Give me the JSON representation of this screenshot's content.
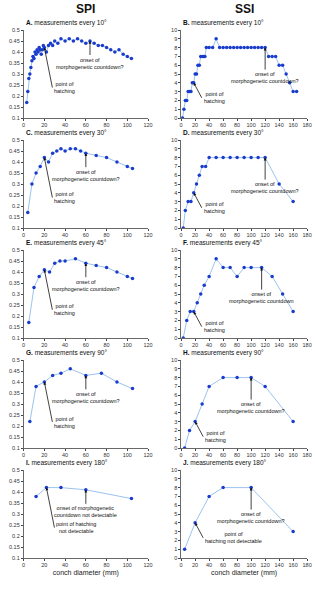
{
  "column_titles": [
    "SPI",
    "SSI"
  ],
  "chart_data": [
    {
      "type": "line",
      "title": "A. measurements every 10°",
      "color": "#1a3ccc",
      "marker": "circle",
      "line_style": "solid",
      "grid": false,
      "x": [
        3,
        4,
        5,
        6,
        7,
        8,
        9,
        10,
        11,
        12,
        13,
        14,
        15,
        16,
        17,
        18,
        19,
        20,
        22,
        24,
        26,
        28,
        30,
        33,
        36,
        40,
        44,
        48,
        52,
        56,
        60,
        64,
        68,
        72,
        76,
        80,
        84,
        88,
        92,
        96,
        100,
        104
      ],
      "values": [
        0.17,
        0.22,
        0.28,
        0.3,
        0.33,
        0.36,
        0.38,
        0.37,
        0.4,
        0.39,
        0.41,
        0.4,
        0.42,
        0.41,
        0.39,
        0.41,
        0.43,
        0.42,
        0.4,
        0.43,
        0.44,
        0.43,
        0.45,
        0.44,
        0.46,
        0.45,
        0.46,
        0.45,
        0.46,
        0.45,
        0.44,
        0.45,
        0.44,
        0.43,
        0.43,
        0.42,
        0.41,
        0.4,
        0.41,
        0.39,
        0.38,
        0.37
      ],
      "xlim": [
        0,
        120
      ],
      "xticks": [
        0,
        20,
        40,
        60,
        80,
        100,
        120
      ],
      "ylim": [
        0.1,
        0.5
      ],
      "yticks": [
        0.1,
        0.15,
        0.2,
        0.25,
        0.3,
        0.35,
        0.4,
        0.45,
        0.5
      ],
      "annotations": [
        {
          "x": 20,
          "y": 0.42,
          "text": "point of\nhatching"
        },
        {
          "x": 64,
          "y": 0.45,
          "text": "onset of\nmorphogenetic countdown?"
        }
      ]
    },
    {
      "type": "line",
      "title": "B. measurements every 10°",
      "color": "#1a3ccc",
      "marker": "circle",
      "line_style": "solid",
      "grid": false,
      "x": [
        2,
        4,
        6,
        8,
        10,
        12,
        14,
        16,
        18,
        20,
        22,
        24,
        26,
        28,
        30,
        32,
        34,
        36,
        40,
        45,
        50,
        55,
        60,
        65,
        70,
        75,
        80,
        85,
        90,
        95,
        100,
        105,
        110,
        115,
        120,
        125,
        130,
        135,
        140,
        145,
        150,
        155,
        160,
        165
      ],
      "values": [
        0,
        1,
        2,
        2,
        3,
        3,
        3,
        4,
        4,
        5,
        5,
        6,
        6,
        7,
        7,
        7,
        7,
        8,
        8,
        8,
        9,
        8,
        8,
        8,
        8,
        8,
        8,
        8,
        8,
        8,
        8,
        8,
        8,
        8,
        8,
        7,
        7,
        7,
        6,
        6,
        5,
        4,
        3,
        3
      ],
      "xlim": [
        0,
        180
      ],
      "xticks": [
        0,
        20,
        40,
        60,
        80,
        100,
        120,
        140,
        160,
        180
      ],
      "ylim": [
        0,
        10
      ],
      "yticks": [
        0,
        1,
        2,
        3,
        4,
        5,
        6,
        7,
        8,
        9,
        10
      ],
      "annotations": [
        {
          "x": 18,
          "y": 4,
          "text": "point of\nhatching"
        },
        {
          "x": 120,
          "y": 8,
          "text": "onset of\nmorphogenetic countdown?"
        }
      ]
    },
    {
      "type": "line",
      "title": "C. measurements every 30°",
      "color": "#1a3ccc",
      "marker": "circle",
      "line_style": "solid",
      "grid": false,
      "x": [
        4,
        8,
        12,
        16,
        20,
        24,
        28,
        32,
        36,
        40,
        45,
        50,
        55,
        60,
        70,
        80,
        90,
        100,
        105
      ],
      "values": [
        0.17,
        0.3,
        0.35,
        0.38,
        0.42,
        0.4,
        0.44,
        0.45,
        0.46,
        0.45,
        0.46,
        0.46,
        0.45,
        0.44,
        0.43,
        0.42,
        0.4,
        0.38,
        0.37
      ],
      "xlim": [
        0,
        120
      ],
      "xticks": [
        0,
        20,
        40,
        60,
        80,
        100,
        120
      ],
      "ylim": [
        0.1,
        0.5
      ],
      "yticks": [
        0.1,
        0.15,
        0.2,
        0.25,
        0.3,
        0.35,
        0.4,
        0.45,
        0.5
      ],
      "annotations": [
        {
          "x": 20,
          "y": 0.42,
          "text": "point of\nhatching"
        },
        {
          "x": 60,
          "y": 0.44,
          "text": "onset of\nmorphogenetic countdown?"
        }
      ]
    },
    {
      "type": "line",
      "title": "D. measurements every 30°",
      "color": "#1a3ccc",
      "marker": "circle",
      "line_style": "solid",
      "grid": false,
      "x": [
        3,
        6,
        10,
        14,
        18,
        22,
        26,
        30,
        35,
        40,
        50,
        60,
        70,
        80,
        90,
        100,
        110,
        120,
        140,
        160
      ],
      "values": [
        0,
        2,
        3,
        3,
        4,
        5,
        6,
        7,
        7,
        8,
        8,
        8,
        8,
        8,
        8,
        8,
        8,
        8,
        5,
        3
      ],
      "xlim": [
        0,
        180
      ],
      "xticks": [
        0,
        20,
        40,
        60,
        80,
        100,
        120,
        140,
        160,
        180
      ],
      "ylim": [
        0,
        10
      ],
      "yticks": [
        0,
        1,
        2,
        3,
        4,
        5,
        6,
        7,
        8,
        9,
        10
      ],
      "annotations": [
        {
          "x": 18,
          "y": 4,
          "text": "point of\nhatching"
        },
        {
          "x": 120,
          "y": 8,
          "text": "onset of\nmorphogenetic countdown?"
        }
      ]
    },
    {
      "type": "line",
      "title": "E. measurements every 45°",
      "color": "#1a3ccc",
      "marker": "circle",
      "line_style": "solid",
      "grid": false,
      "x": [
        5,
        10,
        15,
        20,
        25,
        30,
        35,
        40,
        50,
        60,
        70,
        80,
        90,
        100,
        105
      ],
      "values": [
        0.17,
        0.33,
        0.38,
        0.41,
        0.4,
        0.44,
        0.45,
        0.45,
        0.46,
        0.44,
        0.43,
        0.42,
        0.4,
        0.38,
        0.37
      ],
      "xlim": [
        0,
        120
      ],
      "xticks": [
        0,
        20,
        40,
        60,
        80,
        100,
        120
      ],
      "ylim": [
        0.1,
        0.5
      ],
      "yticks": [
        0.1,
        0.15,
        0.2,
        0.25,
        0.3,
        0.35,
        0.4,
        0.45,
        0.5
      ],
      "annotations": [
        {
          "x": 20,
          "y": 0.41,
          "text": "point of\nhatching"
        },
        {
          "x": 60,
          "y": 0.44,
          "text": "onset of\nmorphogenetic countdown?"
        }
      ]
    },
    {
      "type": "line",
      "title": "F. measurements every 45°",
      "color": "#1a3ccc",
      "marker": "circle",
      "line_style": "solid",
      "grid": false,
      "x": [
        3,
        8,
        13,
        18,
        23,
        28,
        33,
        40,
        50,
        60,
        70,
        80,
        90,
        100,
        115,
        130,
        145,
        160
      ],
      "values": [
        0,
        2,
        3,
        3,
        4,
        5,
        6,
        7,
        9,
        8,
        8,
        7,
        8,
        8,
        8,
        7,
        5,
        3
      ],
      "xlim": [
        0,
        180
      ],
      "xticks": [
        0,
        20,
        40,
        60,
        80,
        100,
        120,
        140,
        160,
        180
      ],
      "ylim": [
        0,
        10
      ],
      "yticks": [
        0,
        1,
        2,
        3,
        4,
        5,
        6,
        7,
        8,
        9,
        10
      ],
      "annotations": [
        {
          "x": 18,
          "y": 3,
          "text": "point of\nhatching"
        },
        {
          "x": 115,
          "y": 8,
          "text": "onset of\nmorphogenetic countdown"
        }
      ]
    },
    {
      "type": "line",
      "title": "G. measurements every 90°",
      "color": "#1a3ccc",
      "marker": "circle",
      "line_style": "solid",
      "grid": false,
      "x": [
        6,
        12,
        20,
        28,
        36,
        45,
        60,
        75,
        90,
        105
      ],
      "values": [
        0.22,
        0.38,
        0.4,
        0.43,
        0.44,
        0.46,
        0.43,
        0.44,
        0.4,
        0.37
      ],
      "xlim": [
        0,
        120
      ],
      "xticks": [
        0,
        20,
        40,
        60,
        80,
        100,
        120
      ],
      "ylim": [
        0.1,
        0.5
      ],
      "yticks": [
        0.1,
        0.15,
        0.2,
        0.25,
        0.3,
        0.35,
        0.4,
        0.45,
        0.5
      ],
      "annotations": [
        {
          "x": 20,
          "y": 0.4,
          "text": "point of\nhatching"
        },
        {
          "x": 60,
          "y": 0.43,
          "text": "onset of\nmorphogenetic countdown?"
        }
      ]
    },
    {
      "type": "line",
      "title": "H. measurements every 90°",
      "color": "#1a3ccc",
      "marker": "circle",
      "line_style": "solid",
      "grid": false,
      "x": [
        5,
        12,
        20,
        30,
        40,
        60,
        80,
        100,
        120,
        160
      ],
      "values": [
        0,
        2,
        3,
        5,
        7,
        8,
        8,
        8,
        7,
        3
      ],
      "xlim": [
        0,
        180
      ],
      "xticks": [
        0,
        20,
        40,
        60,
        80,
        100,
        120,
        140,
        160,
        180
      ],
      "ylim": [
        0,
        10
      ],
      "yticks": [
        0,
        1,
        2,
        3,
        4,
        5,
        6,
        7,
        8,
        9,
        10
      ],
      "annotations": [
        {
          "x": 20,
          "y": 3,
          "text": "point of\nhatching"
        },
        {
          "x": 100,
          "y": 8,
          "text": "onset of\nmorphogenetic countdown?"
        }
      ]
    },
    {
      "type": "line",
      "title": "I. measurements every 180°",
      "color": "#1a3ccc",
      "marker": "circle",
      "line_style": "solid",
      "grid": false,
      "x": [
        12,
        22,
        36,
        60,
        104
      ],
      "values": [
        0.38,
        0.42,
        0.42,
        0.41,
        0.37
      ],
      "xlim": [
        0,
        120
      ],
      "xticks": [
        0,
        20,
        40,
        60,
        80,
        100,
        120
      ],
      "ylim": [
        0.1,
        0.5
      ],
      "yticks": [
        0.1,
        0.15,
        0.2,
        0.25,
        0.3,
        0.35,
        0.4,
        0.45,
        0.5
      ],
      "xlabel": "conch diameter (mm)",
      "annotations": [
        {
          "x": 22,
          "y": 0.42,
          "text": "point of hatching\nnot detectable"
        },
        {
          "x": 60,
          "y": 0.41,
          "text": "onset of morphogenetic\ncountdown not detectable"
        }
      ]
    },
    {
      "type": "line",
      "title": "J. measurements every 180°",
      "color": "#1a3ccc",
      "marker": "circle",
      "line_style": "solid",
      "grid": false,
      "x": [
        5,
        20,
        40,
        60,
        100,
        160
      ],
      "values": [
        1,
        4,
        7,
        8,
        8,
        3
      ],
      "xlim": [
        0,
        180
      ],
      "xticks": [
        0,
        20,
        40,
        60,
        80,
        100,
        120,
        140,
        160,
        180
      ],
      "ylim": [
        0,
        10
      ],
      "yticks": [
        0,
        1,
        2,
        3,
        4,
        5,
        6,
        7,
        8,
        9,
        10
      ],
      "xlabel": "conch diameter (mm)",
      "annotations": [
        {
          "x": 20,
          "y": 4,
          "text": "point of\nhatching not detectable"
        },
        {
          "x": 100,
          "y": 8,
          "text": "onset of\nmorphogenetic countdown?"
        }
      ]
    }
  ]
}
